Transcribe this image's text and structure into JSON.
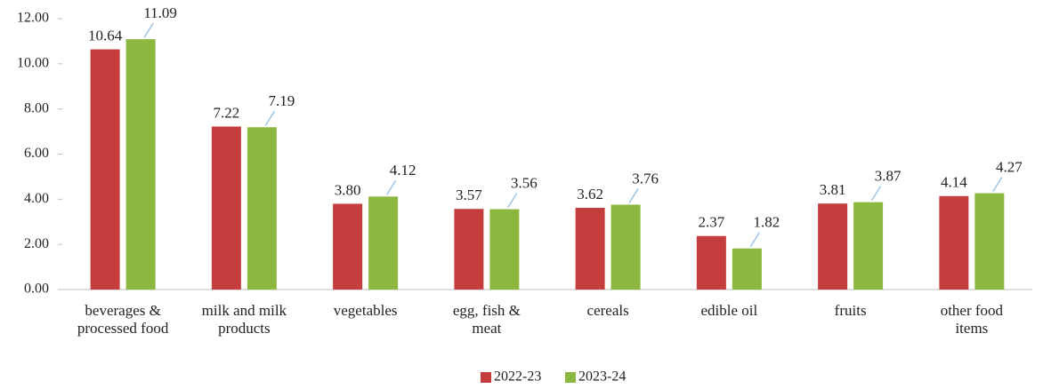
{
  "chart_data": {
    "type": "bar",
    "categories": [
      [
        "beverages &",
        "processed food"
      ],
      [
        "milk and milk",
        "products"
      ],
      [
        "vegetables"
      ],
      [
        "egg, fish &",
        "meat"
      ],
      [
        "cereals"
      ],
      [
        "edible oil"
      ],
      [
        "fruits"
      ],
      [
        "other food",
        "items"
      ]
    ],
    "series": [
      {
        "name": "2022-23",
        "color": "#c63d3d",
        "values": [
          10.64,
          7.22,
          3.8,
          3.57,
          3.62,
          2.37,
          3.81,
          4.14
        ],
        "value_labels": [
          "10.64",
          "7.22",
          "3.80",
          "3.57",
          "3.62",
          "2.37",
          "3.81",
          "4.14"
        ]
      },
      {
        "name": "2023-24",
        "color": "#8cb83f",
        "values": [
          11.09,
          7.19,
          4.12,
          3.56,
          3.76,
          1.82,
          3.87,
          4.27
        ],
        "value_labels": [
          "11.09",
          "7.19",
          "4.12",
          "3.56",
          "3.76",
          "1.82",
          "3.87",
          "4.27"
        ]
      }
    ],
    "ylim": [
      0,
      12
    ],
    "yticks": [
      {
        "value": 0,
        "label": "0.00"
      },
      {
        "value": 2,
        "label": "2.00"
      },
      {
        "value": 4,
        "label": "4.00"
      },
      {
        "value": 6,
        "label": "6.00"
      },
      {
        "value": 8,
        "label": "8.00"
      },
      {
        "value": 10,
        "label": "10.00"
      },
      {
        "value": 12,
        "label": "12.00"
      }
    ],
    "legend": "bottom"
  }
}
